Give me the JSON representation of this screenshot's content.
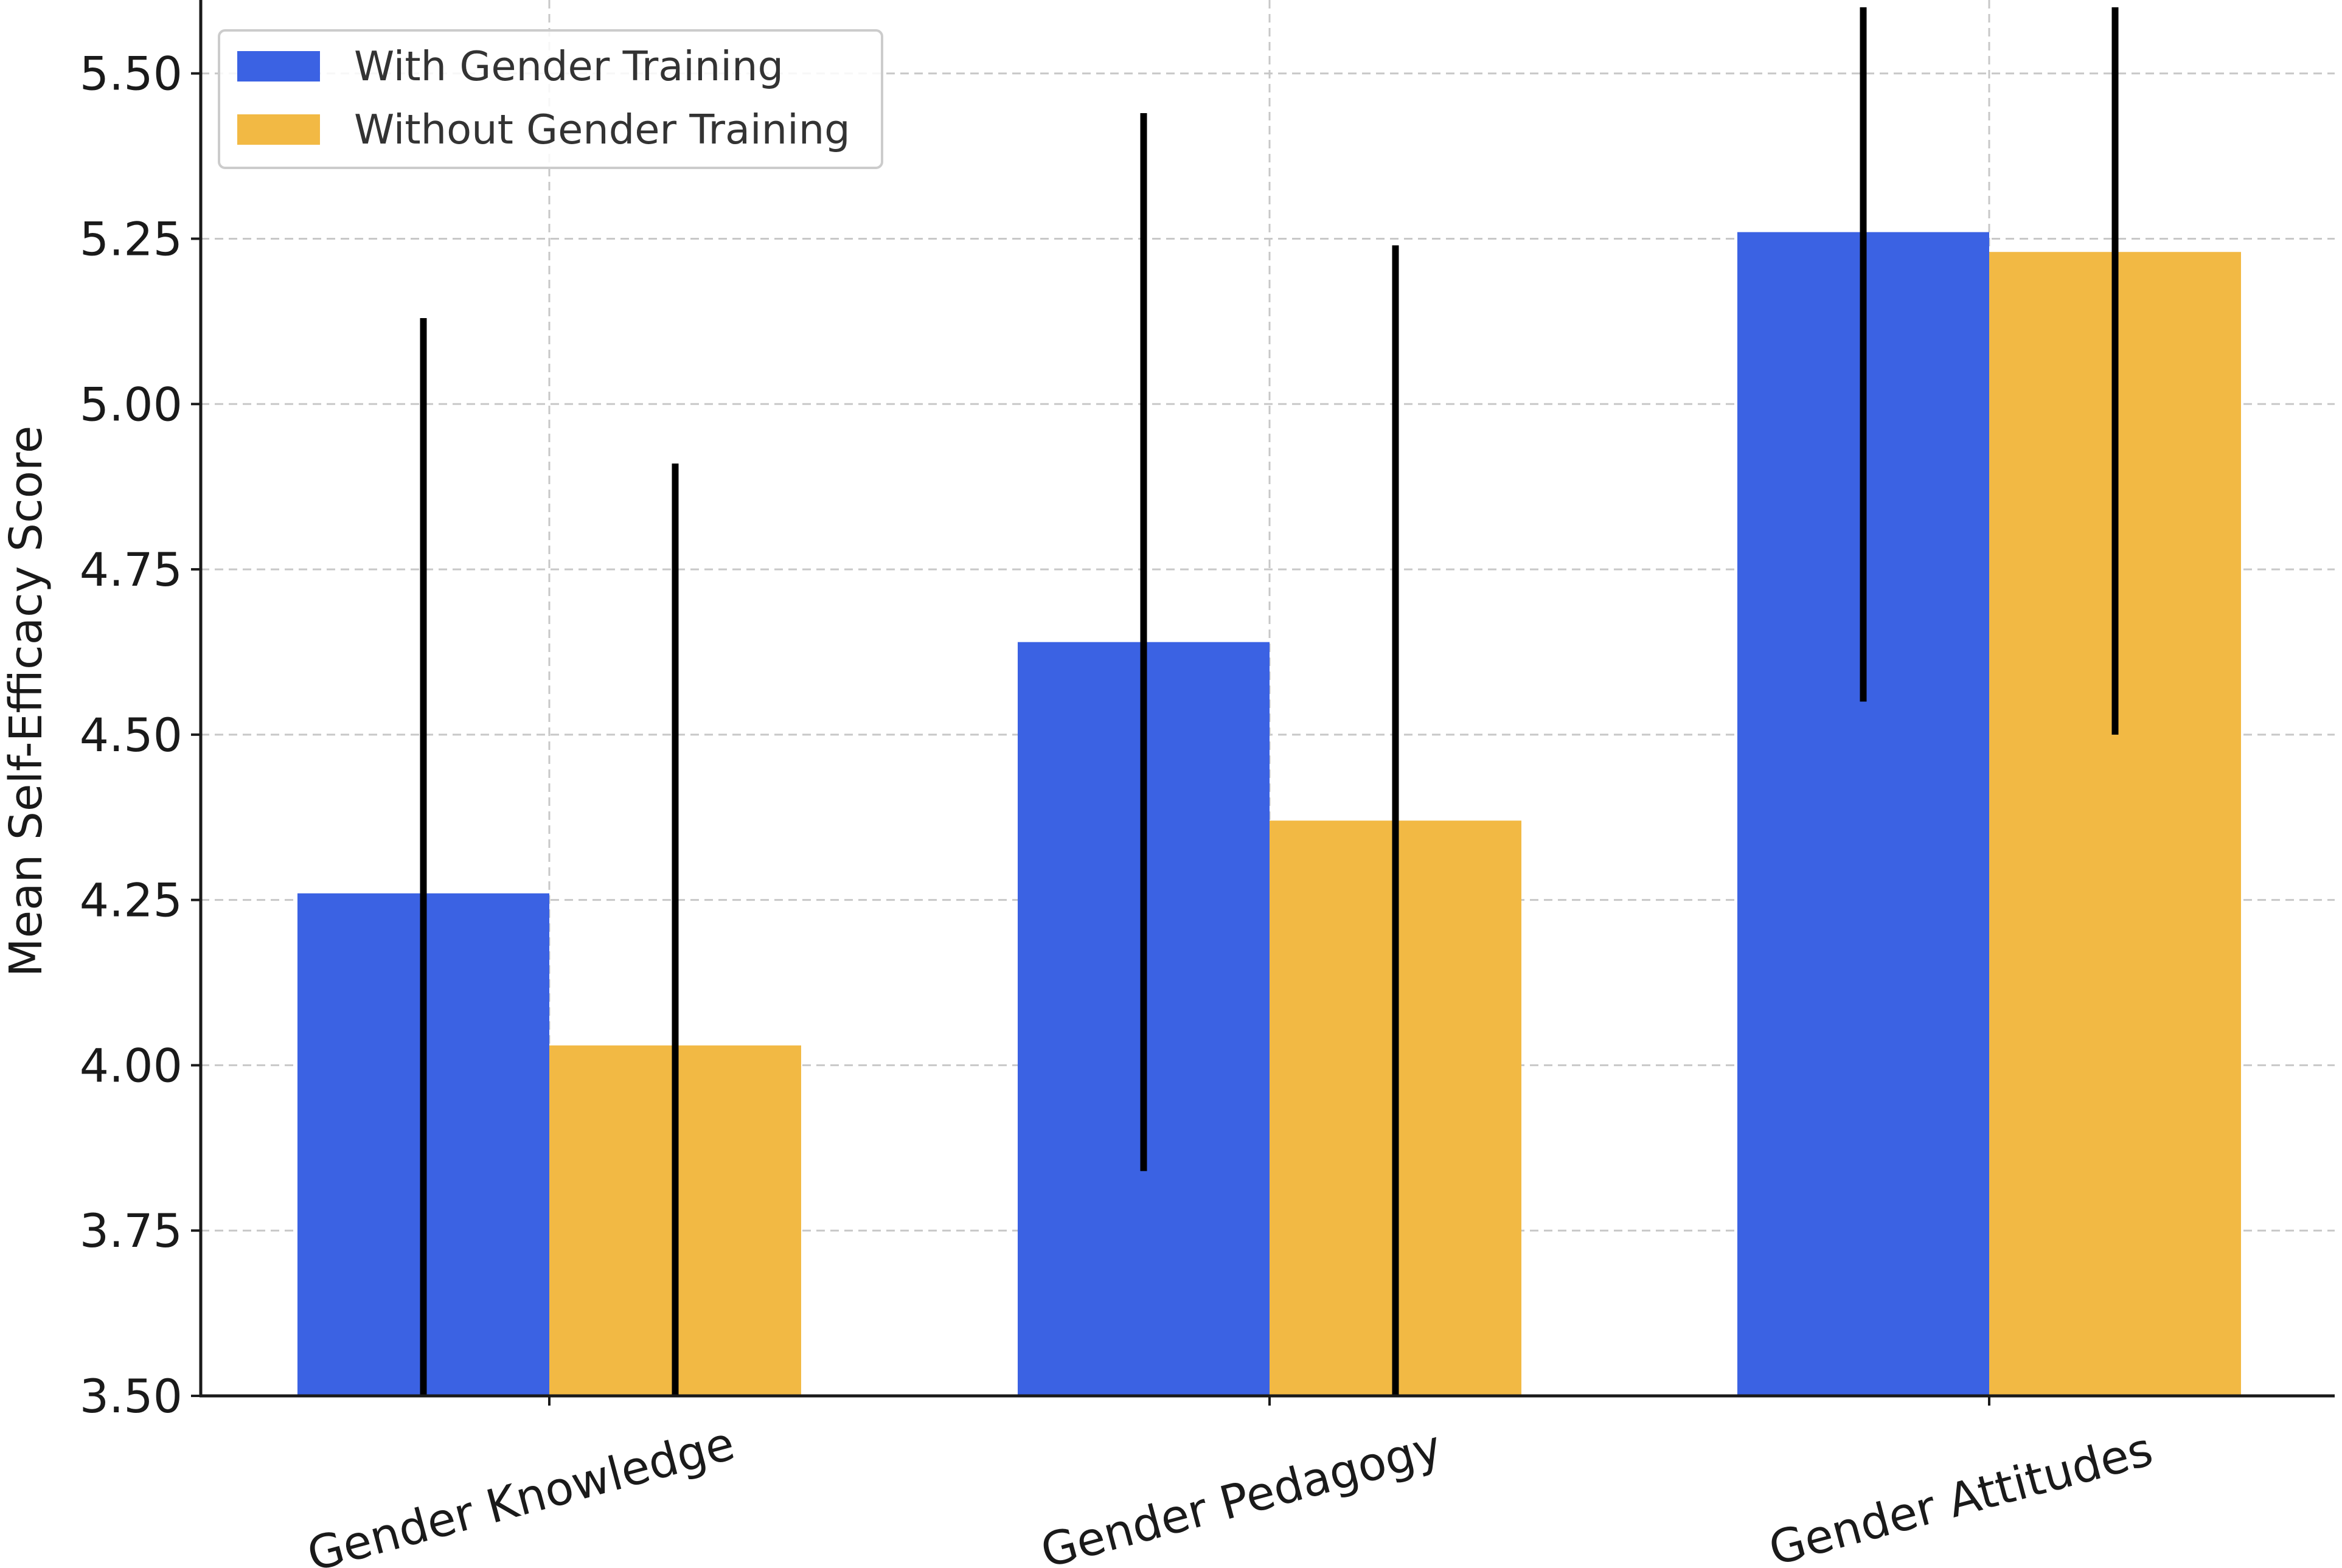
{
  "chart_data": {
    "type": "bar",
    "title": "",
    "xlabel": "",
    "ylabel": "Mean Self-Efficacy Score",
    "ylim": [
      3.5,
      5.6
    ],
    "yticks": [
      "3.50",
      "3.75",
      "4.00",
      "4.25",
      "4.50",
      "4.75",
      "5.00",
      "5.25",
      "5.50"
    ],
    "categories": [
      "Gender Knowledge",
      "Gender Pedagogy",
      "Gender Attitudes"
    ],
    "series": [
      {
        "name": "With Gender Training",
        "color": "#3b62e3",
        "values": [
          4.26,
          4.64,
          5.26
        ],
        "errors": [
          0.87,
          0.8,
          0.71
        ]
      },
      {
        "name": "Without Gender Training",
        "color": "#f2b944",
        "values": [
          4.03,
          4.37,
          5.23
        ],
        "errors": [
          0.88,
          0.87,
          0.73
        ]
      }
    ],
    "legend": "top-left",
    "grid": true
  }
}
